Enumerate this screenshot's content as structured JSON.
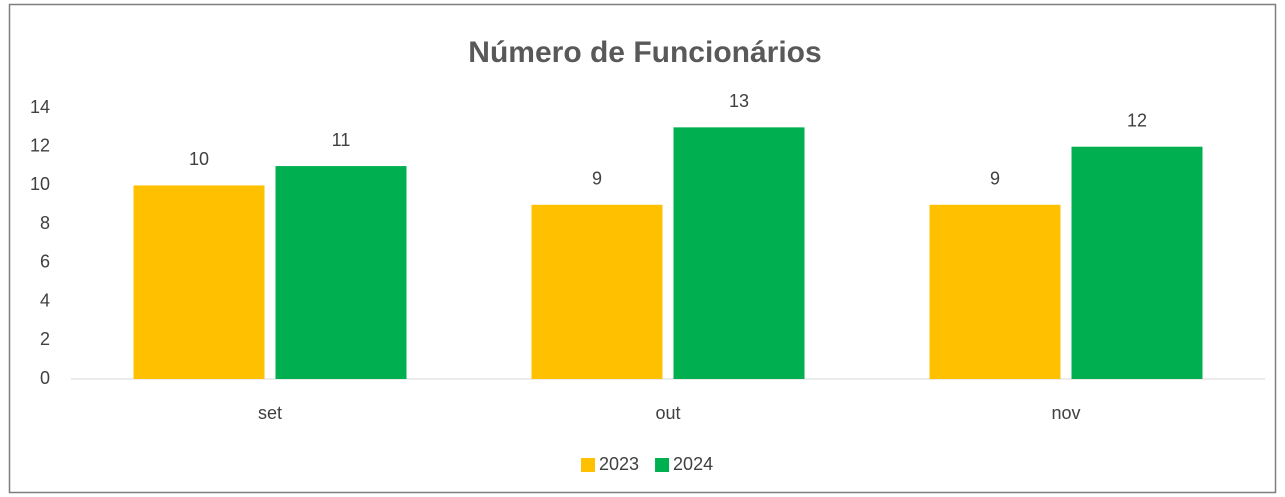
{
  "chart_data": {
    "type": "bar",
    "title": "Número de Funcionários",
    "categories": [
      "set",
      "out",
      "nov"
    ],
    "series": [
      {
        "name": "2023",
        "color": "#FFC000",
        "values": [
          10,
          9,
          9
        ]
      },
      {
        "name": "2024",
        "color": "#00B050",
        "values": [
          11,
          13,
          12
        ]
      }
    ],
    "ylim": [
      0,
      14
    ],
    "yticks": [
      0,
      2,
      4,
      6,
      8,
      10,
      12,
      14
    ],
    "grid": false,
    "legend": "bottom"
  }
}
